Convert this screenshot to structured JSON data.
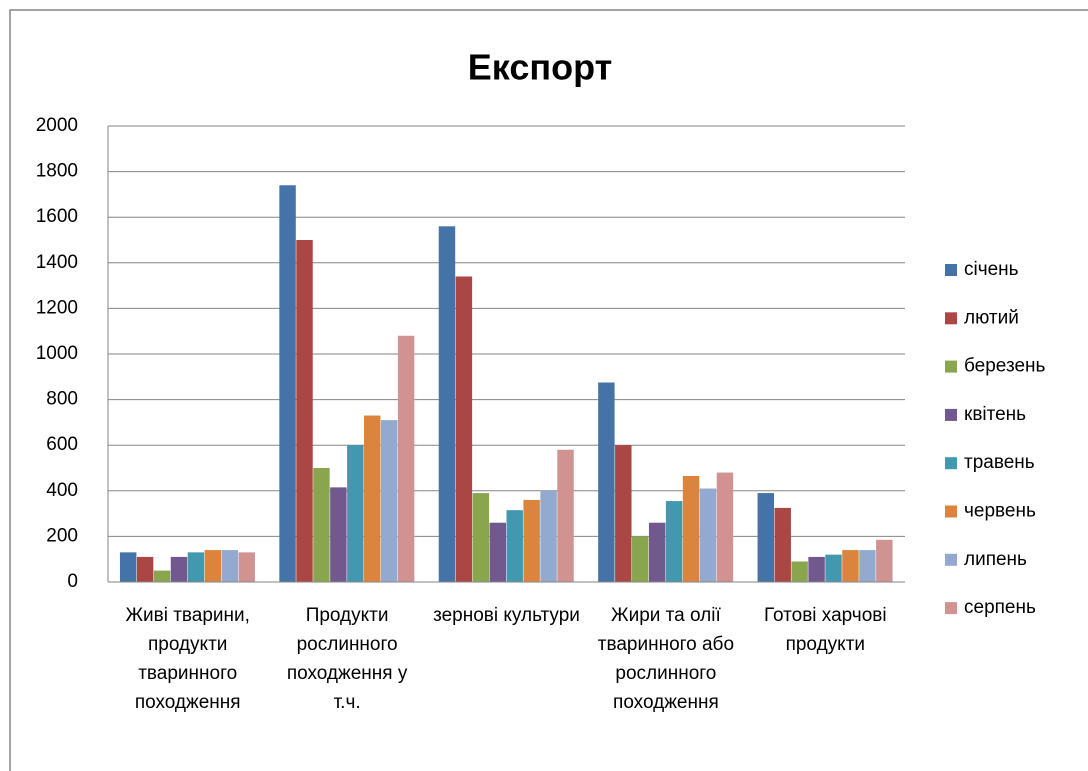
{
  "chart_data": {
    "type": "bar",
    "title": "Експорт",
    "categories": [
      "Живі тварини, продукти тваринного походження",
      "Продукти рослинного походження у т.ч.",
      "зернові культури",
      "Жири та олії тваринного або рослинного походження",
      "Готові харчові продукти"
    ],
    "series": [
      {
        "name": "січень",
        "color": "#4572a7",
        "values": [
          130,
          1740,
          1560,
          875,
          390
        ]
      },
      {
        "name": "лютий",
        "color": "#aa4643",
        "values": [
          110,
          1500,
          1340,
          600,
          325
        ]
      },
      {
        "name": "березень",
        "color": "#89a54e",
        "values": [
          50,
          500,
          390,
          200,
          90
        ]
      },
      {
        "name": "квітень",
        "color": "#71588f",
        "values": [
          110,
          415,
          260,
          260,
          110
        ]
      },
      {
        "name": "травень",
        "color": "#4198af",
        "values": [
          130,
          600,
          315,
          355,
          120
        ]
      },
      {
        "name": "червень",
        "color": "#db843d",
        "values": [
          140,
          730,
          360,
          465,
          140
        ]
      },
      {
        "name": "липень",
        "color": "#93a9cf",
        "values": [
          140,
          710,
          400,
          410,
          140
        ]
      },
      {
        "name": "серпень",
        "color": "#d19392",
        "values": [
          130,
          1080,
          580,
          480,
          185
        ]
      }
    ],
    "ylim": [
      0,
      2000
    ],
    "yticks": [
      0,
      200,
      400,
      600,
      800,
      1000,
      1200,
      1400,
      1600,
      1800,
      2000
    ],
    "grid": true,
    "legend": "right"
  }
}
